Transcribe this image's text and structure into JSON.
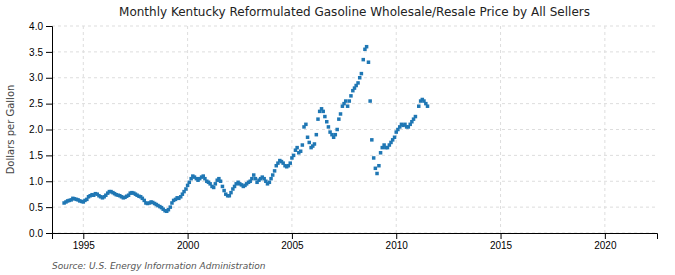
{
  "chart_data": {
    "type": "scatter",
    "title": "Monthly Kentucky Reformulated Gasoline Wholesale/Resale Price by All Sellers",
    "ylabel": "Dollars per Gallon",
    "source": "Source: U.S. Energy Information Administration",
    "marker": "square",
    "grid": true,
    "xlim": [
      1993.5,
      2022.5
    ],
    "ylim": [
      0.0,
      4.0
    ],
    "xticks": [
      1995,
      2000,
      2005,
      2010,
      2015,
      2020
    ],
    "yticks": [
      {
        "value": 0.0,
        "label": "0.0"
      },
      0.5,
      {
        "value": 1.0,
        "label": "1.0"
      },
      1.5,
      {
        "value": 2.0,
        "label": "2.0"
      },
      2.5,
      {
        "value": 3.0,
        "label": "3.0"
      },
      3.5,
      {
        "value": 4.0,
        "label": "4.0"
      }
    ],
    "x": [
      1994.08,
      1994.17,
      1994.25,
      1994.33,
      1994.42,
      1994.5,
      1994.58,
      1994.67,
      1994.75,
      1994.83,
      1994.92,
      1995.0,
      1995.08,
      1995.17,
      1995.25,
      1995.33,
      1995.42,
      1995.5,
      1995.58,
      1995.67,
      1995.75,
      1995.83,
      1995.92,
      1996.0,
      1996.08,
      1996.17,
      1996.25,
      1996.33,
      1996.42,
      1996.5,
      1996.58,
      1996.67,
      1996.75,
      1996.83,
      1996.92,
      1997.0,
      1997.08,
      1997.17,
      1997.25,
      1997.33,
      1997.42,
      1997.5,
      1997.58,
      1997.67,
      1997.75,
      1997.83,
      1997.92,
      1998.0,
      1998.08,
      1998.17,
      1998.25,
      1998.33,
      1998.42,
      1998.5,
      1998.58,
      1998.67,
      1998.75,
      1998.83,
      1998.92,
      1999.0,
      1999.08,
      1999.17,
      1999.25,
      1999.33,
      1999.42,
      1999.5,
      1999.58,
      1999.67,
      1999.75,
      1999.83,
      1999.92,
      2000.0,
      2000.08,
      2000.17,
      2000.25,
      2000.33,
      2000.42,
      2000.5,
      2000.58,
      2000.67,
      2000.75,
      2000.83,
      2000.92,
      2001.0,
      2001.08,
      2001.17,
      2001.25,
      2001.33,
      2001.42,
      2001.5,
      2001.58,
      2001.67,
      2001.75,
      2001.83,
      2001.92,
      2002.0,
      2002.08,
      2002.17,
      2002.25,
      2002.33,
      2002.42,
      2002.5,
      2002.58,
      2002.67,
      2002.75,
      2002.83,
      2002.92,
      2003.0,
      2003.08,
      2003.17,
      2003.25,
      2003.33,
      2003.42,
      2003.5,
      2003.58,
      2003.67,
      2003.75,
      2003.83,
      2003.92,
      2004.0,
      2004.08,
      2004.17,
      2004.25,
      2004.33,
      2004.42,
      2004.5,
      2004.58,
      2004.67,
      2004.75,
      2004.83,
      2004.92,
      2005.0,
      2005.08,
      2005.17,
      2005.25,
      2005.33,
      2005.42,
      2005.5,
      2005.58,
      2005.67,
      2005.75,
      2005.83,
      2005.92,
      2006.0,
      2006.08,
      2006.17,
      2006.25,
      2006.33,
      2006.42,
      2006.5,
      2006.58,
      2006.67,
      2006.75,
      2006.83,
      2006.92,
      2007.0,
      2007.08,
      2007.17,
      2007.25,
      2007.33,
      2007.42,
      2007.5,
      2007.58,
      2007.67,
      2007.75,
      2007.83,
      2007.92,
      2008.0,
      2008.08,
      2008.17,
      2008.25,
      2008.33,
      2008.42,
      2008.5,
      2008.58,
      2008.67,
      2008.75,
      2008.83,
      2008.92,
      2009.0,
      2009.08,
      2009.17,
      2009.25,
      2009.33,
      2009.42,
      2009.5,
      2009.58,
      2009.67,
      2009.75,
      2009.83,
      2009.92,
      2010.0,
      2010.08,
      2010.17,
      2010.25,
      2010.33,
      2010.42,
      2010.5,
      2010.58,
      2010.67,
      2010.75,
      2010.83,
      2010.92,
      2011.08,
      2011.17,
      2011.25,
      2011.33,
      2011.42,
      2011.5
    ],
    "values": [
      0.58,
      0.6,
      0.62,
      0.63,
      0.64,
      0.67,
      0.66,
      0.65,
      0.64,
      0.62,
      0.61,
      0.6,
      0.63,
      0.65,
      0.7,
      0.72,
      0.74,
      0.73,
      0.76,
      0.75,
      0.72,
      0.7,
      0.68,
      0.7,
      0.73,
      0.77,
      0.8,
      0.8,
      0.78,
      0.76,
      0.74,
      0.73,
      0.72,
      0.7,
      0.68,
      0.69,
      0.71,
      0.73,
      0.77,
      0.78,
      0.77,
      0.75,
      0.73,
      0.71,
      0.7,
      0.67,
      0.63,
      0.58,
      0.57,
      0.58,
      0.6,
      0.59,
      0.57,
      0.55,
      0.53,
      0.51,
      0.49,
      0.46,
      0.43,
      0.42,
      0.45,
      0.5,
      0.58,
      0.63,
      0.65,
      0.68,
      0.67,
      0.7,
      0.75,
      0.8,
      0.85,
      0.92,
      0.98,
      1.05,
      1.1,
      1.08,
      1.05,
      1.02,
      1.05,
      1.08,
      1.1,
      1.05,
      1.0,
      0.98,
      0.95,
      0.9,
      0.88,
      0.95,
      1.02,
      1.05,
      1.0,
      0.9,
      0.82,
      0.75,
      0.72,
      0.72,
      0.78,
      0.85,
      0.9,
      0.95,
      0.98,
      0.95,
      0.93,
      0.9,
      0.92,
      0.95,
      0.98,
      1.0,
      1.05,
      1.12,
      1.05,
      0.98,
      1.02,
      1.05,
      1.08,
      1.05,
      1.0,
      0.95,
      0.98,
      1.05,
      1.12,
      1.2,
      1.3,
      1.35,
      1.4,
      1.38,
      1.35,
      1.3,
      1.28,
      1.3,
      1.35,
      1.45,
      1.5,
      1.6,
      1.65,
      1.55,
      1.58,
      1.7,
      2.05,
      2.1,
      1.85,
      1.75,
      1.65,
      1.68,
      1.72,
      1.9,
      2.2,
      2.35,
      2.4,
      2.35,
      2.25,
      2.15,
      2.05,
      1.95,
      1.9,
      1.85,
      1.9,
      2.0,
      2.2,
      2.3,
      2.45,
      2.5,
      2.55,
      2.45,
      2.55,
      2.65,
      2.75,
      2.8,
      2.85,
      2.9,
      3.0,
      3.08,
      3.35,
      3.55,
      3.6,
      3.3,
      2.55,
      1.8,
      1.45,
      1.25,
      1.15,
      1.3,
      1.55,
      1.65,
      1.7,
      1.65,
      1.65,
      1.7,
      1.75,
      1.8,
      1.85,
      1.95,
      2.0,
      2.05,
      2.1,
      2.08,
      2.1,
      2.05,
      2.05,
      2.1,
      2.15,
      2.2,
      2.25,
      2.45,
      2.55,
      2.58,
      2.55,
      2.5,
      2.45
    ]
  }
}
